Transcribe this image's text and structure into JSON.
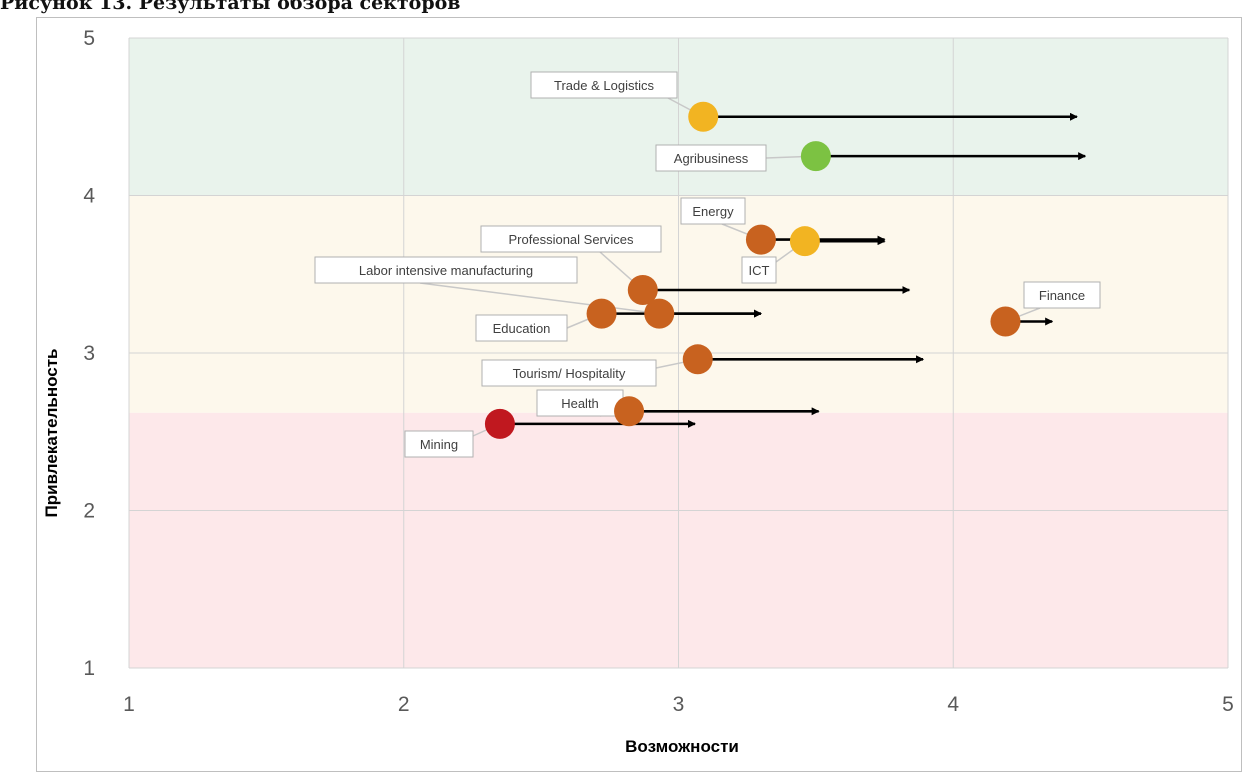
{
  "caption": "Рисунок 13. Результаты обзора секторов",
  "chart_data": {
    "type": "scatter",
    "title": "",
    "xlabel": "Возможности",
    "ylabel": "Привлекательность",
    "xlim": [
      1,
      5
    ],
    "ylim": [
      1,
      5
    ],
    "x_ticks": [
      "1",
      "2",
      "3",
      "4",
      "5"
    ],
    "y_ticks": [
      "1",
      "2",
      "3",
      "4",
      "5"
    ],
    "grid": true,
    "bands": [
      {
        "from": 4.0,
        "to": 5.0,
        "color": "#e9f3ec"
      },
      {
        "from": 2.62,
        "to": 4.0,
        "color": "#fdf8ec"
      },
      {
        "from": 1.0,
        "to": 2.62,
        "color": "#fde8ea"
      }
    ],
    "points": [
      {
        "label": "Trade & Logistics",
        "x": 3.09,
        "y": 4.5,
        "x_end": 4.45,
        "color": "#f2b422"
      },
      {
        "label": "Agribusiness",
        "x": 3.5,
        "y": 4.25,
        "x_end": 4.48,
        "color": "#7cc242"
      },
      {
        "label": "Energy",
        "x": 3.3,
        "y": 3.72,
        "x_end": 3.75,
        "color": "#c8621f"
      },
      {
        "label": "ICT",
        "x": 3.46,
        "y": 3.71,
        "x_end": 3.75,
        "color": "#f2b422"
      },
      {
        "label": "Professional Services",
        "x": 2.87,
        "y": 3.4,
        "x_end": 3.84,
        "color": "#c8621f"
      },
      {
        "label": "Labor intensive manufacturing",
        "x": 2.93,
        "y": 3.25,
        "x_end": 3.3,
        "color": "#c8621f"
      },
      {
        "label": "Education",
        "x": 2.72,
        "y": 3.25,
        "x_end": 3.3,
        "color": "#c8621f"
      },
      {
        "label": "Finance",
        "x": 4.19,
        "y": 3.2,
        "x_end": 4.36,
        "color": "#c8621f"
      },
      {
        "label": "Tourism/ Hospitality",
        "x": 3.07,
        "y": 2.96,
        "x_end": 3.89,
        "color": "#c8621f"
      },
      {
        "label": "Health",
        "x": 2.82,
        "y": 2.63,
        "x_end": 3.51,
        "color": "#c8621f"
      },
      {
        "label": "Mining",
        "x": 2.35,
        "y": 2.55,
        "x_end": 3.06,
        "color": "#c0181f"
      }
    ]
  }
}
